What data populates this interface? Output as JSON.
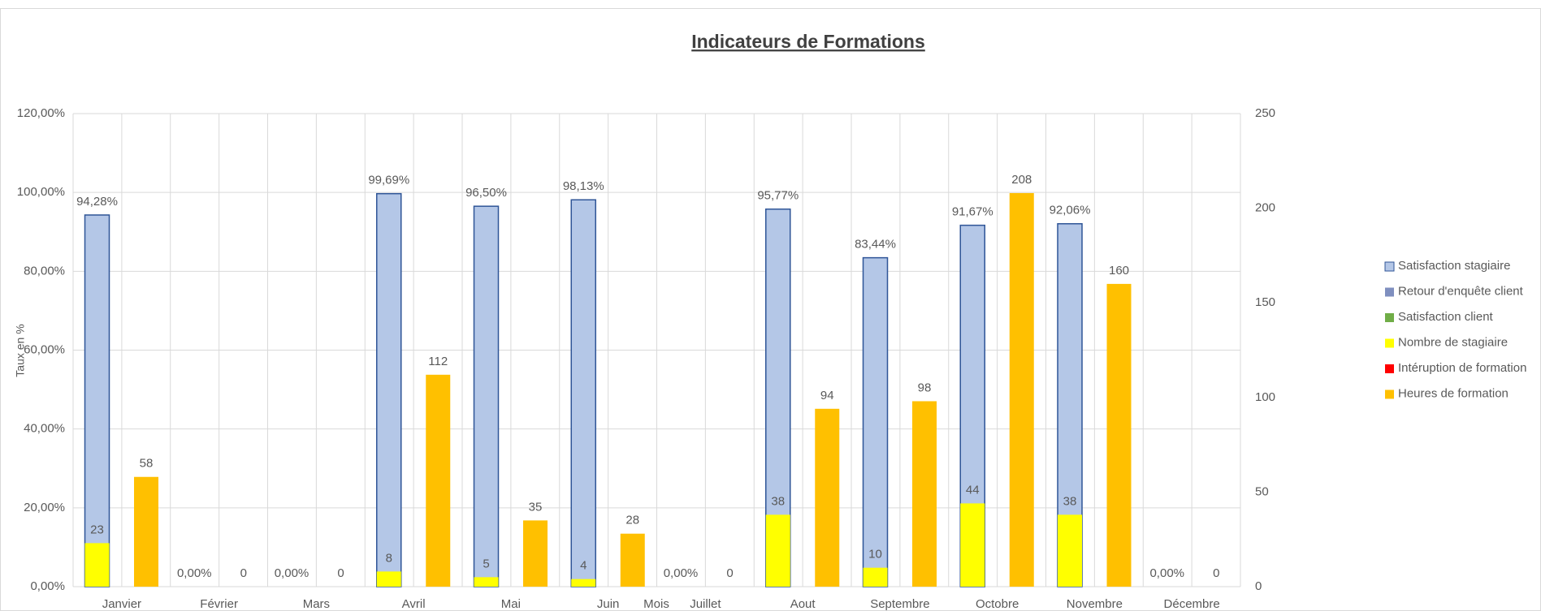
{
  "chart_data": {
    "type": "bar",
    "title": "Indicateurs de Formations",
    "y_label": "Taux en %",
    "x_label": "Mois",
    "categories": [
      "Janvier",
      "Février",
      "Mars",
      "Avril",
      "Mai",
      "Juin",
      "Juillet",
      "Aout",
      "Septembre",
      "Octobre",
      "Novembre",
      "Décembre"
    ],
    "ylim": [
      0,
      120
    ],
    "yticks": [
      {
        "value": 0,
        "label": "0,00%"
      },
      {
        "value": 20,
        "label": "20,00%"
      },
      {
        "value": 40,
        "label": "40,00%"
      },
      {
        "value": 60,
        "label": "60,00%"
      },
      {
        "value": 80,
        "label": "80,00%"
      },
      {
        "value": 100,
        "label": "100,00%"
      },
      {
        "value": 120,
        "label": "120,00%"
      }
    ],
    "y2lim": [
      0,
      250
    ],
    "y2ticks": [
      0,
      50,
      100,
      150,
      200,
      250
    ],
    "grid": true,
    "legend": "right",
    "series": [
      {
        "name": "Satisfaction stagiaire",
        "color": "#b4c7e7",
        "stroke": "#2f5597",
        "values": [
          94.28,
          0,
          0,
          99.69,
          96.5,
          98.13,
          0,
          95.77,
          83.44,
          91.67,
          92.06,
          0
        ],
        "value_labels": [
          "94,28%",
          "0,00%",
          "0,00%",
          "99,69%",
          "96,50%",
          "98,13%",
          "0,00%",
          "95,77%",
          "83,44%",
          "91,67%",
          "92,06%",
          "0,00%"
        ]
      },
      {
        "name": "Retour d'enquête client",
        "color": "#7f8fbf",
        "values": [
          null,
          null,
          null,
          null,
          null,
          null,
          null,
          null,
          null,
          null,
          null,
          null
        ]
      },
      {
        "name": "Satisfaction client",
        "color": "#70ad47",
        "values": [
          null,
          null,
          null,
          null,
          null,
          null,
          null,
          null,
          null,
          null,
          null,
          null
        ]
      },
      {
        "name": "Nombre de stagiaire",
        "color": "#ffff00",
        "axis": "y2",
        "values": [
          23,
          null,
          null,
          8,
          5,
          4,
          null,
          38,
          10,
          44,
          38,
          null
        ]
      },
      {
        "name": "Intéruption de formation",
        "color": "#ff0000",
        "axis": "y2",
        "values": [
          null,
          null,
          null,
          null,
          null,
          null,
          null,
          null,
          null,
          null,
          null,
          null
        ]
      },
      {
        "name": "Heures de formation",
        "color": "#ffc000",
        "axis": "y2",
        "values": [
          58,
          0,
          0,
          112,
          35,
          28,
          0,
          94,
          98,
          208,
          160,
          0
        ]
      }
    ]
  }
}
